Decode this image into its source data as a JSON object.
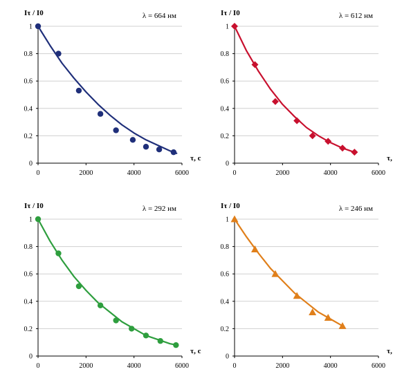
{
  "chart_data": [
    {
      "type": "scatter",
      "annotation": "λ = 664 нм",
      "ylabel": "Iτ / I0",
      "xlabel": "τ, с",
      "xlim": [
        0,
        6000
      ],
      "ylim": [
        0,
        1
      ],
      "xticks": [
        "0",
        "2000",
        "4000",
        "6000"
      ],
      "yticks": [
        "0",
        "0.2",
        "0.4",
        "0.6",
        "0.8",
        "1"
      ],
      "grid": "horizontal",
      "marker": "circle",
      "color": "#1f2f7a",
      "x": [
        0,
        850,
        1700,
        2600,
        3250,
        3950,
        4500,
        5050,
        5650
      ],
      "y": [
        1.0,
        0.8,
        0.53,
        0.36,
        0.24,
        0.17,
        0.12,
        0.1,
        0.08
      ],
      "fit_x": [
        0,
        500,
        1000,
        1500,
        2000,
        2500,
        3000,
        3500,
        4000,
        4500,
        5000,
        5500,
        5800
      ],
      "fit_y": [
        1.0,
        0.86,
        0.73,
        0.62,
        0.52,
        0.43,
        0.35,
        0.28,
        0.22,
        0.17,
        0.13,
        0.09,
        0.07
      ]
    },
    {
      "type": "scatter",
      "annotation": "λ = 612 нм",
      "ylabel": "Iτ / I0",
      "xlabel": "τ, с",
      "xlim": [
        0,
        6000
      ],
      "ylim": [
        0,
        1
      ],
      "xticks": [
        "0",
        "2000",
        "4000",
        "6000"
      ],
      "yticks": [
        "0",
        "0.2",
        "0.4",
        "0.6",
        "0.8",
        "1"
      ],
      "grid": "horizontal",
      "marker": "diamond",
      "color": "#c8102e",
      "x": [
        0,
        850,
        1700,
        2600,
        3250,
        3900,
        4500,
        5000
      ],
      "y": [
        1.0,
        0.72,
        0.45,
        0.31,
        0.2,
        0.16,
        0.11,
        0.08
      ],
      "fit_x": [
        0,
        500,
        1000,
        1500,
        2000,
        2500,
        3000,
        3500,
        4000,
        4500,
        5000
      ],
      "fit_y": [
        1.0,
        0.82,
        0.67,
        0.54,
        0.43,
        0.34,
        0.26,
        0.2,
        0.15,
        0.11,
        0.08
      ]
    },
    {
      "type": "scatter",
      "annotation": "λ = 292 нм",
      "ylabel": "Iτ / I0",
      "xlabel": "τ, с",
      "xlim": [
        0,
        6000
      ],
      "ylim": [
        0,
        1
      ],
      "xticks": [
        "0",
        "2000",
        "4000",
        "6000"
      ],
      "yticks": [
        "0",
        "0.2",
        "0.4",
        "0.6",
        "0.8",
        "1"
      ],
      "grid": "horizontal",
      "marker": "circle",
      "color": "#2e9e3e",
      "x": [
        0,
        850,
        1700,
        2600,
        3250,
        3900,
        4500,
        5100,
        5750
      ],
      "y": [
        1.0,
        0.75,
        0.51,
        0.37,
        0.26,
        0.2,
        0.15,
        0.11,
        0.08
      ],
      "fit_x": [
        0,
        500,
        1000,
        1500,
        2000,
        2500,
        3000,
        3500,
        4000,
        4500,
        5000,
        5500,
        5800
      ],
      "fit_y": [
        1.0,
        0.84,
        0.7,
        0.58,
        0.48,
        0.39,
        0.32,
        0.25,
        0.2,
        0.15,
        0.12,
        0.09,
        0.08
      ]
    },
    {
      "type": "scatter",
      "annotation": "λ = 246 нм",
      "ylabel": "Iτ / I0",
      "xlabel": "τ, с",
      "xlim": [
        0,
        6000
      ],
      "ylim": [
        0,
        1
      ],
      "xticks": [
        "0",
        "2000",
        "4000",
        "6000"
      ],
      "yticks": [
        "0",
        "0.2",
        "0.4",
        "0.6",
        "0.8",
        "1"
      ],
      "grid": "horizontal",
      "marker": "triangle",
      "color": "#e07f1a",
      "x": [
        0,
        850,
        1700,
        2600,
        3250,
        3900,
        4500
      ],
      "y": [
        1.0,
        0.78,
        0.6,
        0.44,
        0.32,
        0.28,
        0.22
      ],
      "fit_x": [
        0,
        500,
        1000,
        1500,
        2000,
        2500,
        3000,
        3500,
        4000,
        4500
      ],
      "fit_y": [
        1.0,
        0.87,
        0.75,
        0.64,
        0.55,
        0.46,
        0.39,
        0.32,
        0.27,
        0.22
      ]
    }
  ]
}
